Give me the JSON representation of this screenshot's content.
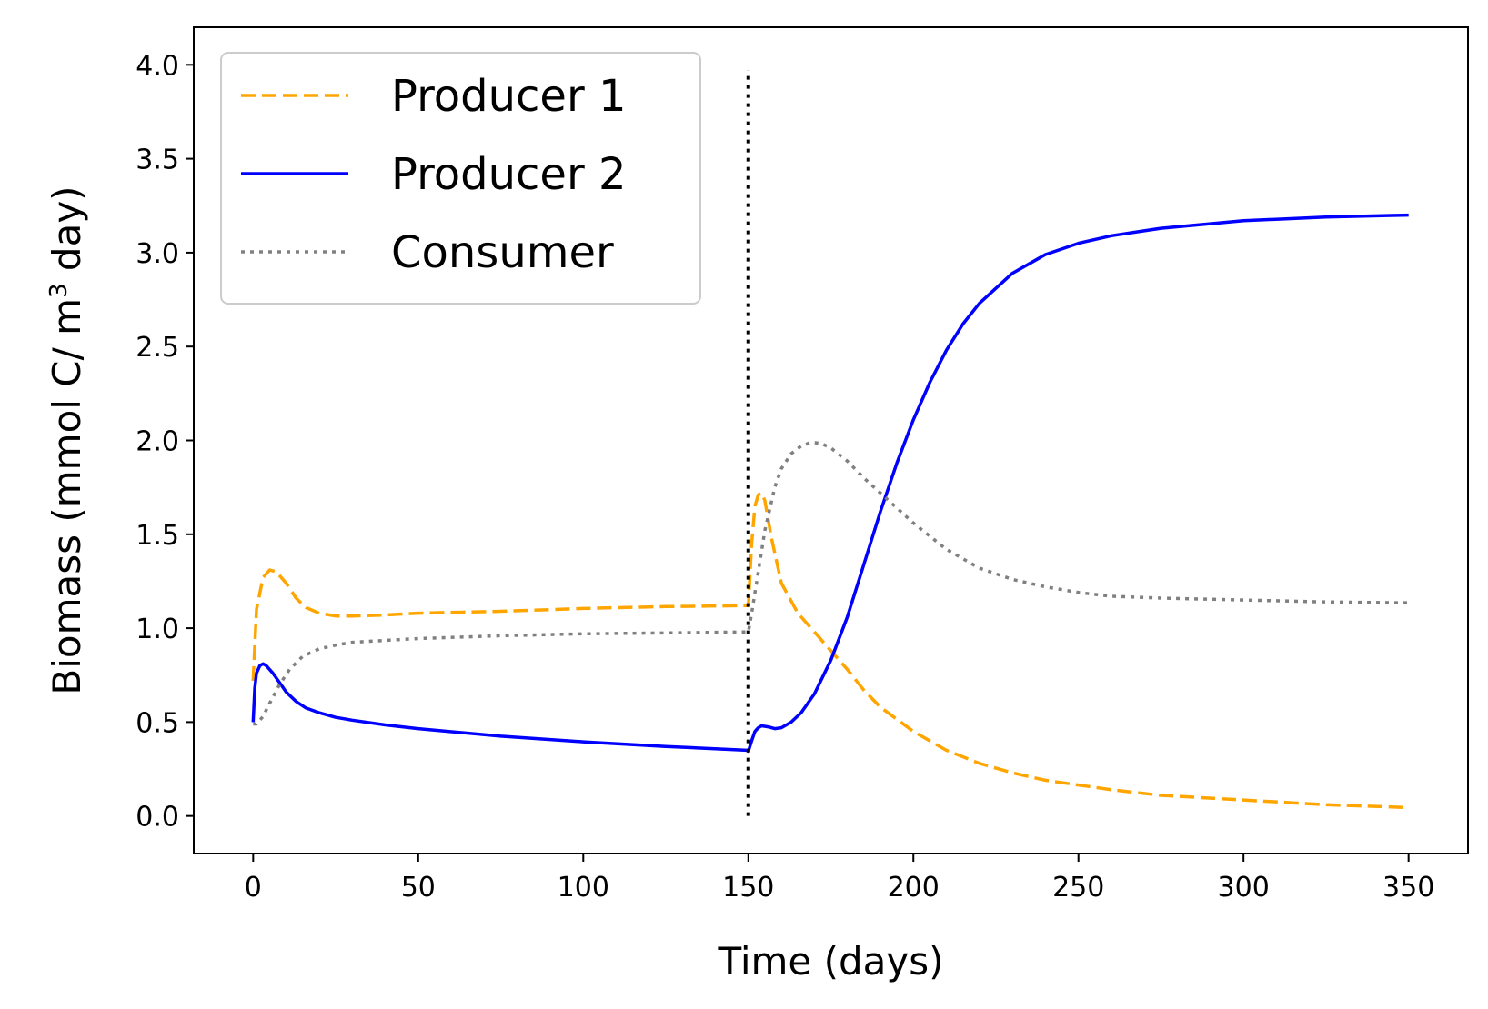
{
  "chart_data": {
    "type": "line",
    "xlabel": "Time (days)",
    "ylabel": {
      "main": "Biomass (mmol C/ m",
      "superscript": "3",
      "tail": " day)"
    },
    "xlim": [
      -18,
      368
    ],
    "ylim": [
      -0.2,
      4.2
    ],
    "xticks": [
      0,
      50,
      100,
      150,
      200,
      250,
      300,
      350
    ],
    "yticks": [
      0.0,
      0.5,
      1.0,
      1.5,
      2.0,
      2.5,
      3.0,
      3.5,
      4.0
    ],
    "grid": false,
    "legend_position": "top-left",
    "vline": {
      "x": 150,
      "y_range": [
        0.0,
        3.97
      ],
      "color": "#000000",
      "style": "dotted"
    },
    "series": [
      {
        "name": "Producer 1",
        "color": "#FFA500",
        "style": "dashed",
        "x": [
          0,
          1,
          3,
          5,
          7,
          10,
          13,
          16,
          20,
          25,
          30,
          40,
          50,
          75,
          100,
          125,
          149.5,
          150,
          151,
          152,
          153,
          154,
          155,
          157,
          160,
          165,
          170,
          175,
          180,
          185,
          190,
          200,
          210,
          220,
          230,
          240,
          250,
          260,
          275,
          300,
          325,
          350
        ],
        "y": [
          0.72,
          1.1,
          1.27,
          1.31,
          1.3,
          1.24,
          1.16,
          1.11,
          1.08,
          1.065,
          1.065,
          1.07,
          1.08,
          1.09,
          1.105,
          1.115,
          1.12,
          1.12,
          1.45,
          1.65,
          1.71,
          1.72,
          1.68,
          1.48,
          1.24,
          1.08,
          0.98,
          0.88,
          0.78,
          0.67,
          0.58,
          0.45,
          0.35,
          0.28,
          0.23,
          0.19,
          0.165,
          0.14,
          0.11,
          0.085,
          0.06,
          0.045
        ]
      },
      {
        "name": "Producer 2",
        "color": "#0000FF",
        "style": "solid",
        "x": [
          0,
          0.5,
          1,
          2,
          3,
          4,
          6,
          8,
          10,
          13,
          16,
          20,
          25,
          30,
          40,
          50,
          75,
          100,
          125,
          149.5,
          150,
          151,
          152,
          153,
          154,
          156,
          158,
          160,
          163,
          166,
          170,
          175,
          180,
          185,
          190,
          195,
          200,
          205,
          210,
          215,
          220,
          230,
          240,
          250,
          260,
          275,
          300,
          325,
          350
        ],
        "y": [
          0.5,
          0.68,
          0.76,
          0.8,
          0.81,
          0.8,
          0.76,
          0.71,
          0.66,
          0.61,
          0.575,
          0.55,
          0.525,
          0.51,
          0.485,
          0.465,
          0.425,
          0.395,
          0.37,
          0.35,
          0.345,
          0.4,
          0.45,
          0.47,
          0.48,
          0.475,
          0.465,
          0.47,
          0.5,
          0.55,
          0.65,
          0.83,
          1.06,
          1.34,
          1.62,
          1.88,
          2.11,
          2.31,
          2.48,
          2.62,
          2.73,
          2.89,
          2.99,
          3.05,
          3.09,
          3.13,
          3.17,
          3.19,
          3.2
        ]
      },
      {
        "name": "Consumer",
        "color": "#808080",
        "style": "dotted",
        "x": [
          0,
          1,
          3,
          5,
          8,
          11,
          15,
          20,
          25,
          30,
          40,
          50,
          75,
          100,
          125,
          149.5,
          150,
          151,
          153,
          155,
          158,
          160,
          163,
          166,
          169,
          172,
          175,
          180,
          185,
          190,
          195,
          200,
          210,
          220,
          230,
          240,
          250,
          260,
          275,
          300,
          325,
          350
        ],
        "y": [
          0.49,
          0.49,
          0.53,
          0.6,
          0.7,
          0.78,
          0.85,
          0.89,
          0.91,
          0.925,
          0.935,
          0.945,
          0.96,
          0.97,
          0.975,
          0.98,
          0.98,
          1.08,
          1.3,
          1.52,
          1.75,
          1.85,
          1.93,
          1.97,
          1.99,
          1.985,
          1.96,
          1.89,
          1.8,
          1.72,
          1.64,
          1.56,
          1.42,
          1.32,
          1.26,
          1.22,
          1.19,
          1.17,
          1.16,
          1.15,
          1.14,
          1.135
        ]
      }
    ]
  }
}
